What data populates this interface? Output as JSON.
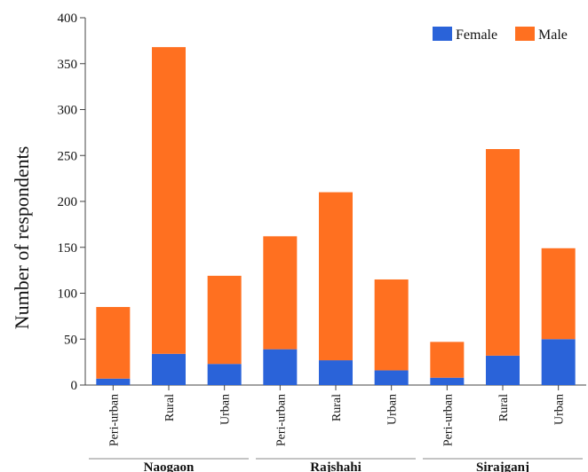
{
  "chart_data": {
    "type": "bar",
    "stacked": true,
    "ylabel": "Number of respondents",
    "xlabel": "",
    "ylim": [
      0,
      400
    ],
    "yticks": [
      0,
      50,
      100,
      150,
      200,
      250,
      300,
      350,
      400
    ],
    "grid": false,
    "legend_position": "top-right",
    "groups": [
      "Naogaon",
      "Rajshahi",
      "Sirajganj"
    ],
    "categories": [
      "Peri-urban",
      "Rural",
      "Urban",
      "Peri-urban",
      "Rural",
      "Urban",
      "Peri-urban",
      "Rural",
      "Urban"
    ],
    "series": [
      {
        "name": "Female",
        "color": "#2a63d9",
        "values": [
          7,
          34,
          23,
          39,
          27,
          16,
          8,
          32,
          50
        ]
      },
      {
        "name": "Male",
        "color": "#ff7020",
        "values": [
          78,
          334,
          96,
          123,
          183,
          99,
          39,
          225,
          99
        ]
      }
    ]
  }
}
